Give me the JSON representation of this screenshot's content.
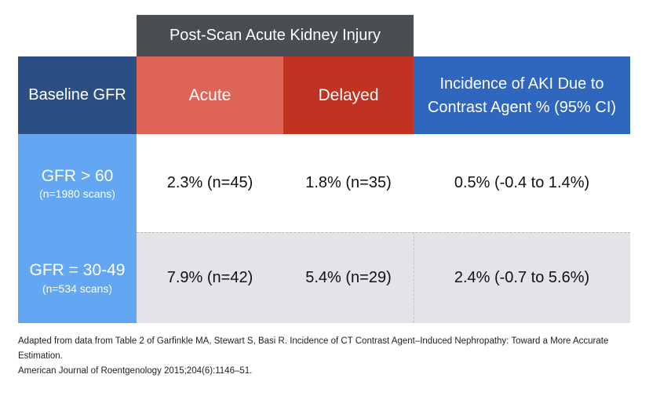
{
  "table": {
    "span_header": "Post-Scan Acute Kidney Injury",
    "headers": {
      "baseline": "Baseline GFR",
      "acute": "Acute",
      "delayed": "Delayed",
      "incidence_line1": "Incidence of AKI Due to",
      "incidence_line2": "Contrast Agent % (95% CI)"
    },
    "rows": [
      {
        "label": "GFR > 60",
        "sublabel": "(n=1980 scans)",
        "acute": "2.3% (n=45)",
        "delayed": "1.8% (n=35)",
        "incidence": "0.5% (-0.4 to 1.4%)"
      },
      {
        "label": "GFR = 30-49",
        "sublabel": "(n=534 scans)",
        "acute": "7.9% (n=42)",
        "delayed": "5.4% (n=29)",
        "incidence": "2.4% (-0.7 to 5.6%)"
      }
    ]
  },
  "footnote": {
    "line1": "Adapted from data from Table 2 of Garfinkle MA, Stewart S, Basi R. Incidence of CT Contrast Agent–Induced Nephropathy: Toward a More Accurate Estimation.",
    "line2": "American Journal of Roentgenology 2015;204(6):1146–51."
  },
  "colors": {
    "span_header_bg": "#4a4d52",
    "baseline_header_bg": "#2b4f84",
    "acute_header_bg": "#df6458",
    "delayed_header_bg": "#c03222",
    "incidence_header_bg": "#2f66be",
    "row_label_bg": "#63a6f1",
    "row2_bg": "#e3e4e8"
  }
}
